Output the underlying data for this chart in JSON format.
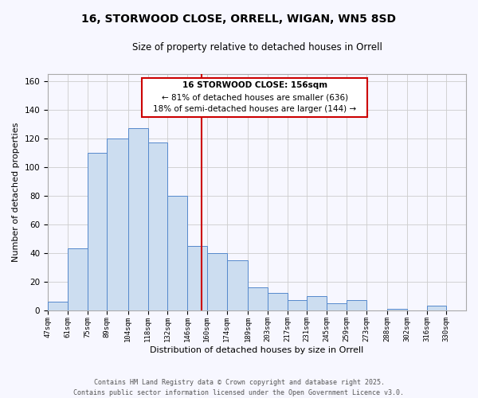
{
  "title": "16, STORWOOD CLOSE, ORRELL, WIGAN, WN5 8SD",
  "subtitle": "Size of property relative to detached houses in Orrell",
  "xlabel": "Distribution of detached houses by size in Orrell",
  "ylabel": "Number of detached properties",
  "bins": [
    "47sqm",
    "61sqm",
    "75sqm",
    "89sqm",
    "104sqm",
    "118sqm",
    "132sqm",
    "146sqm",
    "160sqm",
    "174sqm",
    "189sqm",
    "203sqm",
    "217sqm",
    "231sqm",
    "245sqm",
    "259sqm",
    "273sqm",
    "288sqm",
    "302sqm",
    "316sqm",
    "330sqm"
  ],
  "bin_edges": [
    47,
    61,
    75,
    89,
    104,
    118,
    132,
    146,
    160,
    174,
    189,
    203,
    217,
    231,
    245,
    259,
    273,
    288,
    302,
    316,
    330
  ],
  "counts": [
    6,
    43,
    110,
    120,
    127,
    117,
    80,
    45,
    40,
    35,
    16,
    12,
    7,
    10,
    5,
    7,
    0,
    1,
    0,
    3
  ],
  "bar_color": "#ccddf0",
  "bar_edge_color": "#5588cc",
  "property_line_x": 156,
  "property_line_color": "#cc0000",
  "annotation_title": "16 STORWOOD CLOSE: 156sqm",
  "annotation_line1": "← 81% of detached houses are smaller (636)",
  "annotation_line2": "18% of semi-detached houses are larger (144) →",
  "grid_color": "#cccccc",
  "background_color": "#f7f7ff",
  "footer_line1": "Contains HM Land Registry data © Crown copyright and database right 2025.",
  "footer_line2": "Contains public sector information licensed under the Open Government Licence v3.0.",
  "ylim": [
    0,
    165
  ],
  "yticks": [
    0,
    20,
    40,
    60,
    80,
    100,
    120,
    140,
    160
  ]
}
